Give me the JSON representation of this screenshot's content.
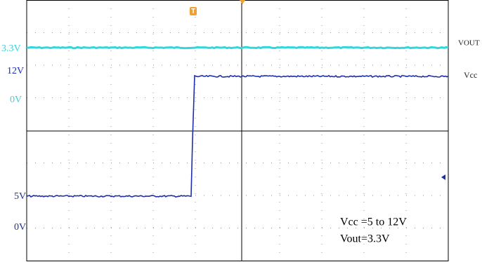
{
  "left_labels": [
    "3.3V",
    "12V",
    "0V",
    "5V",
    "0V"
  ],
  "right_labels": [
    "VOUT",
    "Vcc"
  ],
  "annotation": [
    "Vcc =5 to 12V",
    "Vout=3.3V"
  ],
  "trigger_marker": "T"
}
